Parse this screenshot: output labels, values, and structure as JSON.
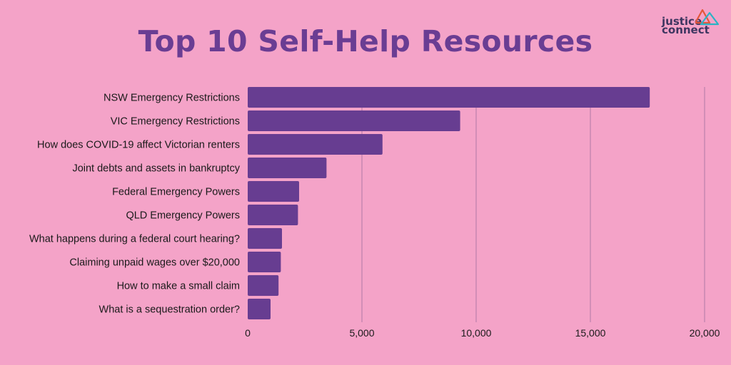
{
  "logo": {
    "line1": "justice",
    "line2": "connect"
  },
  "colors": {
    "background": "#F4A3C8",
    "bar": "#673D91",
    "title": "#6A3D93",
    "grid": "#B078A6"
  },
  "chart_data": {
    "type": "bar",
    "orientation": "horizontal",
    "title": "Top 10 Self-Help Resources",
    "xlabel": "",
    "ylabel": "",
    "xlim": [
      0,
      20000
    ],
    "grid": true,
    "ticks": [
      0,
      5000,
      10000,
      15000,
      20000
    ],
    "tick_labels": [
      "0",
      "5,000",
      "10,000",
      "15,000",
      "20,000"
    ],
    "categories": [
      "NSW Emergency Restrictions",
      "VIC Emergency Restrictions",
      "How does COVID-19 affect Victorian renters",
      "Joint debts and assets in bankruptcy",
      "Federal Emergency Powers",
      "QLD Emergency Powers",
      "What happens during a federal court hearing?",
      "Claiming unpaid wages over $20,000",
      "How to make a small claim",
      "What is a sequestration order?"
    ],
    "values": [
      17600,
      9300,
      5900,
      3450,
      2250,
      2200,
      1500,
      1450,
      1350,
      1000
    ]
  }
}
